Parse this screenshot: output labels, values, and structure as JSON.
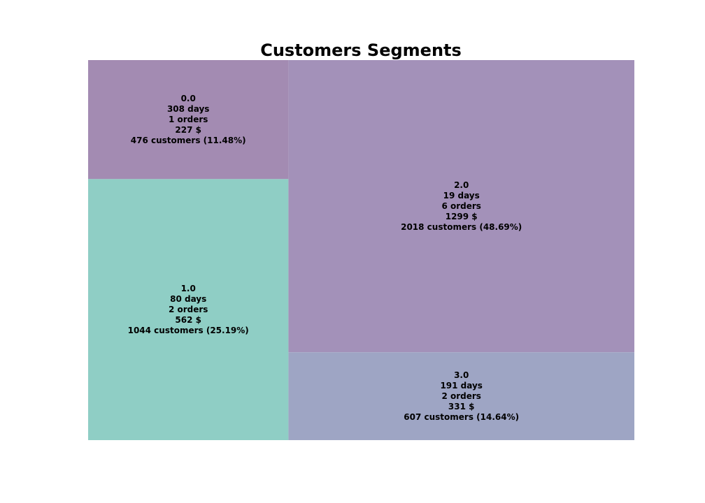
{
  "chart_data": {
    "type": "treemap",
    "title": "Customers Segments",
    "segments": [
      {
        "name": "0.0",
        "recency_days": "308 days",
        "orders": "1 orders",
        "monetary": "227 $",
        "customers_label": "476 customers (11.48%)",
        "customers": 476,
        "percent": 11.48,
        "color": "#a38bb2"
      },
      {
        "name": "1.0",
        "recency_days": "80 days",
        "orders": "2 orders",
        "monetary": "562 $",
        "customers_label": "1044 customers (25.19%)",
        "customers": 1044,
        "percent": 25.19,
        "color": "#8fcec5"
      },
      {
        "name": "2.0",
        "recency_days": "19 days",
        "orders": "6 orders",
        "monetary": "1299 $",
        "customers_label": "2018 customers (48.69%)",
        "customers": 2018,
        "percent": 48.69,
        "color": "#a391b9"
      },
      {
        "name": "3.0",
        "recency_days": "191 days",
        "orders": "2 orders",
        "monetary": "331 $",
        "customers_label": "607 customers (14.64%)",
        "customers": 607,
        "percent": 14.64,
        "color": "#9ea5c4"
      }
    ]
  }
}
